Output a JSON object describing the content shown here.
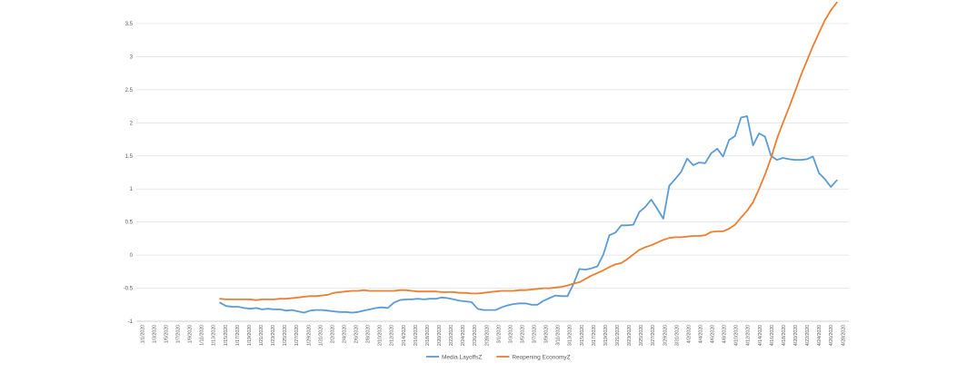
{
  "chart_data": {
    "type": "line",
    "title": "",
    "xlabel": "",
    "ylabel": "",
    "ylim": [
      -1,
      3.5
    ],
    "y_ticks": [
      {
        "v": 3.5,
        "label": "3.5"
      },
      {
        "v": 3,
        "label": "3"
      },
      {
        "v": 2.5,
        "label": "2.5"
      },
      {
        "v": 2,
        "label": "2"
      },
      {
        "v": 1.5,
        "label": "1.5"
      },
      {
        "v": 1,
        "label": "1"
      },
      {
        "v": 0.5,
        "label": "0.5"
      },
      {
        "v": 0,
        "label": "0"
      },
      {
        "v": -0.5,
        "label": "-0.5"
      },
      {
        "v": -1,
        "label": "-1"
      }
    ],
    "grid": true,
    "legend_position": "bottom",
    "x_start": "2020-01-01",
    "x_end": "2020-04-29",
    "x_tick_labels": [
      "1/1/2020",
      "1/3/2020",
      "1/5/2020",
      "1/7/2020",
      "1/9/2020",
      "1/11/2020",
      "1/13/2020",
      "1/15/2020",
      "1/17/2020",
      "1/19/2020",
      "1/21/2020",
      "1/23/2020",
      "1/25/2020",
      "1/27/2020",
      "1/29/2020",
      "1/31/2020",
      "2/2/2020",
      "2/4/2020",
      "2/6/2020",
      "2/8/2020",
      "2/10/2020",
      "2/12/2020",
      "2/14/2020",
      "2/16/2020",
      "2/18/2020",
      "2/20/2020",
      "2/22/2020",
      "2/24/2020",
      "2/26/2020",
      "2/28/2020",
      "3/1/2020",
      "3/3/2020",
      "3/5/2020",
      "3/7/2020",
      "3/9/2020",
      "3/11/2020",
      "3/13/2020",
      "3/15/2020",
      "3/17/2020",
      "3/19/2020",
      "3/21/2020",
      "3/23/2020",
      "3/25/2020",
      "3/27/2020",
      "3/29/2020",
      "3/31/2020",
      "4/2/2020",
      "4/4/2020",
      "4/6/2020",
      "4/8/2020",
      "4/10/2020",
      "4/12/2020",
      "4/14/2020",
      "4/16/2020",
      "4/18/2020",
      "4/20/2020",
      "4/22/2020",
      "4/24/2020",
      "4/26/2020",
      "4/28/2020"
    ],
    "series": [
      {
        "name": "Media LayoffsZ",
        "color": "#5B9BD5",
        "points": [
          [
            "2020-01-15",
            -0.72
          ],
          [
            "2020-01-16",
            -0.77
          ],
          [
            "2020-01-17",
            -0.78
          ],
          [
            "2020-01-18",
            -0.78
          ],
          [
            "2020-01-19",
            -0.8
          ],
          [
            "2020-01-20",
            -0.81
          ],
          [
            "2020-01-21",
            -0.8
          ],
          [
            "2020-01-22",
            -0.82
          ],
          [
            "2020-01-23",
            -0.81
          ],
          [
            "2020-01-24",
            -0.82
          ],
          [
            "2020-01-25",
            -0.82
          ],
          [
            "2020-01-26",
            -0.84
          ],
          [
            "2020-01-27",
            -0.83
          ],
          [
            "2020-01-28",
            -0.85
          ],
          [
            "2020-01-29",
            -0.87
          ],
          [
            "2020-01-30",
            -0.84
          ],
          [
            "2020-01-31",
            -0.83
          ],
          [
            "2020-02-01",
            -0.83
          ],
          [
            "2020-02-02",
            -0.84
          ],
          [
            "2020-02-03",
            -0.85
          ],
          [
            "2020-02-04",
            -0.86
          ],
          [
            "2020-02-05",
            -0.86
          ],
          [
            "2020-02-06",
            -0.87
          ],
          [
            "2020-02-07",
            -0.86
          ],
          [
            "2020-02-08",
            -0.84
          ],
          [
            "2020-02-09",
            -0.82
          ],
          [
            "2020-02-10",
            -0.8
          ],
          [
            "2020-02-11",
            -0.79
          ],
          [
            "2020-02-12",
            -0.8
          ],
          [
            "2020-02-13",
            -0.72
          ],
          [
            "2020-02-14",
            -0.68
          ],
          [
            "2020-02-15",
            -0.67
          ],
          [
            "2020-02-16",
            -0.67
          ],
          [
            "2020-02-17",
            -0.66
          ],
          [
            "2020-02-18",
            -0.67
          ],
          [
            "2020-02-19",
            -0.66
          ],
          [
            "2020-02-20",
            -0.66
          ],
          [
            "2020-02-21",
            -0.64
          ],
          [
            "2020-02-22",
            -0.65
          ],
          [
            "2020-02-23",
            -0.67
          ],
          [
            "2020-02-24",
            -0.69
          ],
          [
            "2020-02-25",
            -0.7
          ],
          [
            "2020-02-26",
            -0.71
          ],
          [
            "2020-02-27",
            -0.81
          ],
          [
            "2020-02-28",
            -0.83
          ],
          [
            "2020-02-29",
            -0.83
          ],
          [
            "2020-03-01",
            -0.83
          ],
          [
            "2020-03-02",
            -0.79
          ],
          [
            "2020-03-03",
            -0.76
          ],
          [
            "2020-03-04",
            -0.74
          ],
          [
            "2020-03-05",
            -0.73
          ],
          [
            "2020-03-06",
            -0.73
          ],
          [
            "2020-03-07",
            -0.75
          ],
          [
            "2020-03-08",
            -0.75
          ],
          [
            "2020-03-09",
            -0.69
          ],
          [
            "2020-03-10",
            -0.65
          ],
          [
            "2020-03-11",
            -0.61
          ],
          [
            "2020-03-12",
            -0.62
          ],
          [
            "2020-03-13",
            -0.62
          ],
          [
            "2020-03-14",
            -0.44
          ],
          [
            "2020-03-15",
            -0.21
          ],
          [
            "2020-03-16",
            -0.22
          ],
          [
            "2020-03-17",
            -0.2
          ],
          [
            "2020-03-18",
            -0.17
          ],
          [
            "2020-03-19",
            0.01
          ],
          [
            "2020-03-20",
            0.3
          ],
          [
            "2020-03-21",
            0.34
          ],
          [
            "2020-03-22",
            0.45
          ],
          [
            "2020-03-23",
            0.45
          ],
          [
            "2020-03-24",
            0.46
          ],
          [
            "2020-03-25",
            0.65
          ],
          [
            "2020-03-26",
            0.73
          ],
          [
            "2020-03-27",
            0.84
          ],
          [
            "2020-03-28",
            0.7
          ],
          [
            "2020-03-29",
            0.55
          ],
          [
            "2020-03-30",
            1.05
          ],
          [
            "2020-03-31",
            1.15
          ],
          [
            "2020-04-01",
            1.26
          ],
          [
            "2020-04-02",
            1.46
          ],
          [
            "2020-04-03",
            1.36
          ],
          [
            "2020-04-04",
            1.4
          ],
          [
            "2020-04-05",
            1.39
          ],
          [
            "2020-04-06",
            1.54
          ],
          [
            "2020-04-07",
            1.61
          ],
          [
            "2020-04-08",
            1.49
          ],
          [
            "2020-04-09",
            1.74
          ],
          [
            "2020-04-10",
            1.8
          ],
          [
            "2020-04-11",
            2.08
          ],
          [
            "2020-04-12",
            2.1
          ],
          [
            "2020-04-13",
            1.66
          ],
          [
            "2020-04-14",
            1.84
          ],
          [
            "2020-04-15",
            1.79
          ],
          [
            "2020-04-16",
            1.5
          ],
          [
            "2020-04-17",
            1.44
          ],
          [
            "2020-04-18",
            1.47
          ],
          [
            "2020-04-19",
            1.45
          ],
          [
            "2020-04-20",
            1.44
          ],
          [
            "2020-04-21",
            1.44
          ],
          [
            "2020-04-22",
            1.45
          ],
          [
            "2020-04-23",
            1.49
          ],
          [
            "2020-04-24",
            1.24
          ],
          [
            "2020-04-25",
            1.15
          ],
          [
            "2020-04-26",
            1.03
          ],
          [
            "2020-04-27",
            1.13
          ]
        ]
      },
      {
        "name": "Reopening EconomyZ",
        "color": "#ED7D31",
        "points": [
          [
            "2020-01-15",
            -0.66
          ],
          [
            "2020-01-16",
            -0.67
          ],
          [
            "2020-01-17",
            -0.67
          ],
          [
            "2020-01-18",
            -0.67
          ],
          [
            "2020-01-19",
            -0.67
          ],
          [
            "2020-01-20",
            -0.67
          ],
          [
            "2020-01-21",
            -0.68
          ],
          [
            "2020-01-22",
            -0.67
          ],
          [
            "2020-01-23",
            -0.67
          ],
          [
            "2020-01-24",
            -0.67
          ],
          [
            "2020-01-25",
            -0.66
          ],
          [
            "2020-01-26",
            -0.66
          ],
          [
            "2020-01-27",
            -0.65
          ],
          [
            "2020-01-28",
            -0.64
          ],
          [
            "2020-01-29",
            -0.63
          ],
          [
            "2020-01-30",
            -0.62
          ],
          [
            "2020-01-31",
            -0.62
          ],
          [
            "2020-02-01",
            -0.61
          ],
          [
            "2020-02-02",
            -0.6
          ],
          [
            "2020-02-03",
            -0.57
          ],
          [
            "2020-02-04",
            -0.56
          ],
          [
            "2020-02-05",
            -0.55
          ],
          [
            "2020-02-06",
            -0.54
          ],
          [
            "2020-02-07",
            -0.54
          ],
          [
            "2020-02-08",
            -0.53
          ],
          [
            "2020-02-09",
            -0.54
          ],
          [
            "2020-02-10",
            -0.54
          ],
          [
            "2020-02-11",
            -0.54
          ],
          [
            "2020-02-12",
            -0.54
          ],
          [
            "2020-02-13",
            -0.54
          ],
          [
            "2020-02-14",
            -0.53
          ],
          [
            "2020-02-15",
            -0.53
          ],
          [
            "2020-02-16",
            -0.54
          ],
          [
            "2020-02-17",
            -0.55
          ],
          [
            "2020-02-18",
            -0.55
          ],
          [
            "2020-02-19",
            -0.55
          ],
          [
            "2020-02-20",
            -0.55
          ],
          [
            "2020-02-21",
            -0.56
          ],
          [
            "2020-02-22",
            -0.56
          ],
          [
            "2020-02-23",
            -0.56
          ],
          [
            "2020-02-24",
            -0.57
          ],
          [
            "2020-02-25",
            -0.57
          ],
          [
            "2020-02-26",
            -0.58
          ],
          [
            "2020-02-27",
            -0.58
          ],
          [
            "2020-02-28",
            -0.57
          ],
          [
            "2020-02-29",
            -0.56
          ],
          [
            "2020-03-01",
            -0.55
          ],
          [
            "2020-03-02",
            -0.54
          ],
          [
            "2020-03-03",
            -0.54
          ],
          [
            "2020-03-04",
            -0.54
          ],
          [
            "2020-03-05",
            -0.53
          ],
          [
            "2020-03-06",
            -0.53
          ],
          [
            "2020-03-07",
            -0.52
          ],
          [
            "2020-03-08",
            -0.51
          ],
          [
            "2020-03-09",
            -0.5
          ],
          [
            "2020-03-10",
            -0.5
          ],
          [
            "2020-03-11",
            -0.49
          ],
          [
            "2020-03-12",
            -0.48
          ],
          [
            "2020-03-13",
            -0.46
          ],
          [
            "2020-03-14",
            -0.43
          ],
          [
            "2020-03-15",
            -0.41
          ],
          [
            "2020-03-16",
            -0.36
          ],
          [
            "2020-03-17",
            -0.31
          ],
          [
            "2020-03-18",
            -0.27
          ],
          [
            "2020-03-19",
            -0.23
          ],
          [
            "2020-03-20",
            -0.18
          ],
          [
            "2020-03-21",
            -0.14
          ],
          [
            "2020-03-22",
            -0.12
          ],
          [
            "2020-03-23",
            -0.06
          ],
          [
            "2020-03-24",
            0.01
          ],
          [
            "2020-03-25",
            0.08
          ],
          [
            "2020-03-26",
            0.12
          ],
          [
            "2020-03-27",
            0.15
          ],
          [
            "2020-03-28",
            0.19
          ],
          [
            "2020-03-29",
            0.23
          ],
          [
            "2020-03-30",
            0.26
          ],
          [
            "2020-03-31",
            0.27
          ],
          [
            "2020-04-01",
            0.27
          ],
          [
            "2020-04-02",
            0.28
          ],
          [
            "2020-04-03",
            0.29
          ],
          [
            "2020-04-04",
            0.29
          ],
          [
            "2020-04-05",
            0.3
          ],
          [
            "2020-04-06",
            0.35
          ],
          [
            "2020-04-07",
            0.36
          ],
          [
            "2020-04-08",
            0.36
          ],
          [
            "2020-04-09",
            0.4
          ],
          [
            "2020-04-10",
            0.46
          ],
          [
            "2020-04-11",
            0.57
          ],
          [
            "2020-04-12",
            0.67
          ],
          [
            "2020-04-13",
            0.8
          ],
          [
            "2020-04-14",
            1.0
          ],
          [
            "2020-04-15",
            1.22
          ],
          [
            "2020-04-16",
            1.47
          ],
          [
            "2020-04-17",
            1.76
          ],
          [
            "2020-04-18",
            2.0
          ],
          [
            "2020-04-19",
            2.23
          ],
          [
            "2020-04-20",
            2.47
          ],
          [
            "2020-04-21",
            2.72
          ],
          [
            "2020-04-22",
            2.94
          ],
          [
            "2020-04-23",
            3.16
          ],
          [
            "2020-04-24",
            3.36
          ],
          [
            "2020-04-25",
            3.55
          ],
          [
            "2020-04-26",
            3.7
          ],
          [
            "2020-04-27",
            3.82
          ]
        ]
      }
    ]
  }
}
